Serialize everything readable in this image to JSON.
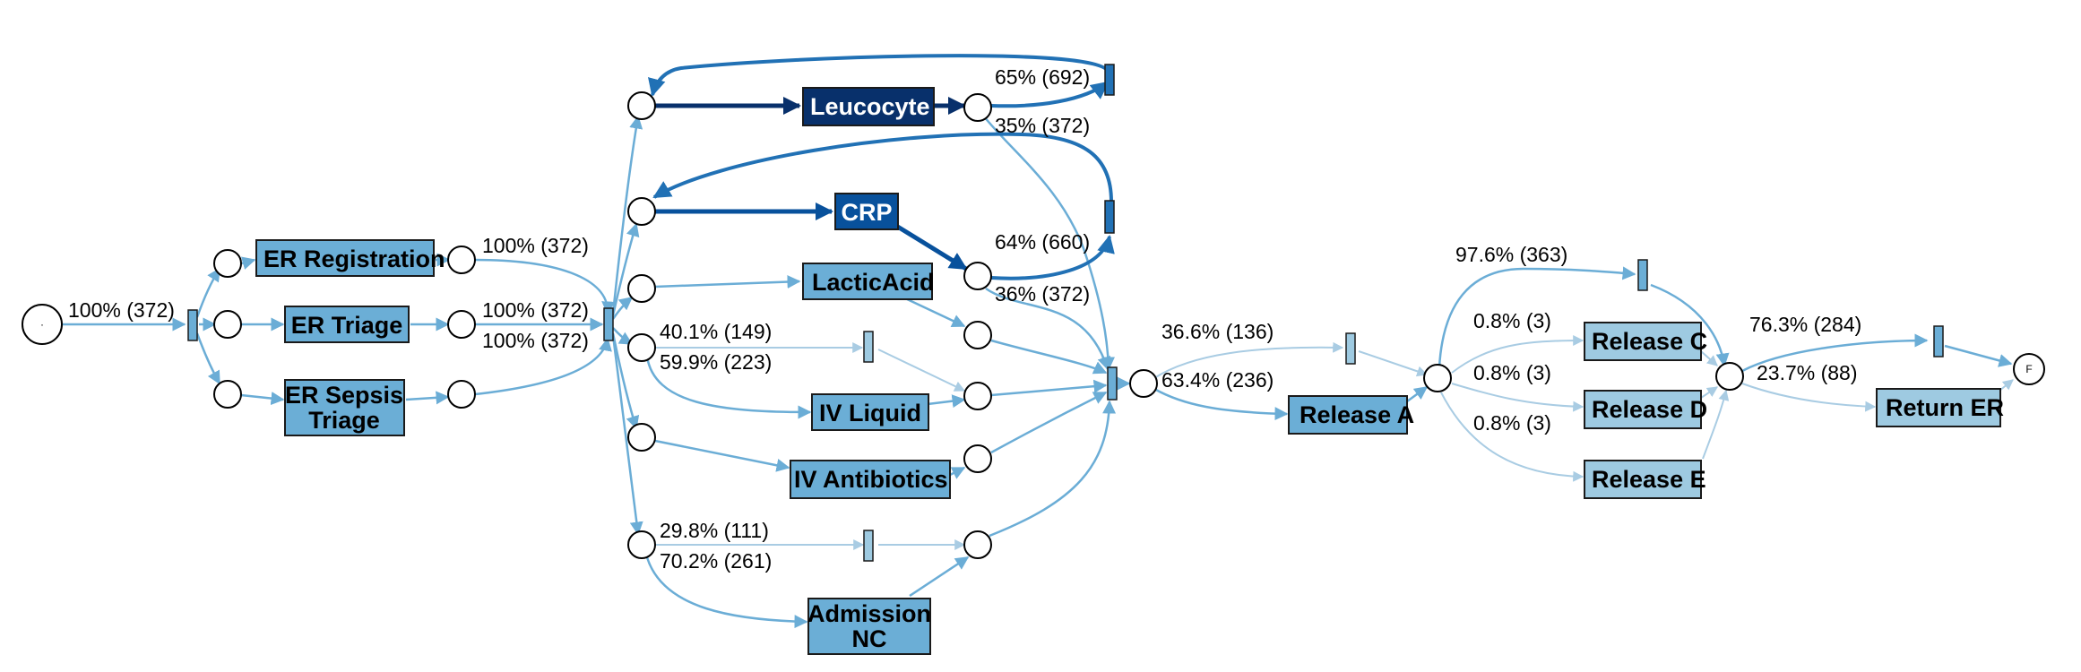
{
  "colors": {
    "light": "#a9cce3",
    "mid": "#6badd6",
    "strong": "#2171b5",
    "deep": "#08519c",
    "darkest": "#08306b",
    "node_light": "#9ecae1",
    "node_mid": "#6baed6",
    "node_dark": "#08519c",
    "node_darkest": "#08306b"
  },
  "start_place": {
    "label": "·"
  },
  "end_place": {
    "label": "F"
  },
  "activities": {
    "er_registration": "ER Registration",
    "er_triage": "ER Triage",
    "er_sepsis_triage_1": "ER Sepsis",
    "er_sepsis_triage_2": "Triage",
    "leucocytes": "Leucocyte",
    "crp": "CRP",
    "lacticacid": "LacticAcid",
    "iv_liquid": "IV Liquid",
    "iv_antibiotics": "IV Antibiotics",
    "admission_nc_1": "Admission",
    "admission_nc_2": "NC",
    "release_a": "Release A",
    "release_c": "Release C",
    "release_d": "Release D",
    "release_e": "Release E",
    "return_er": "Return ER"
  },
  "edge_labels": {
    "start_split": "100% (372)",
    "registration": "100% (372)",
    "triage": "100% (372)",
    "sepsis_triage": "100% (372)",
    "leuco_loop": "65% (692)",
    "leuco_exit": "35% (372)",
    "crp_loop": "64% (660)",
    "crp_exit": "36% (372)",
    "liquid_skip": "40.1% (149)",
    "liquid_do": "59.9% (223)",
    "admission_skip": "29.8% (111)",
    "admission_do": "70.2% (261)",
    "release_skip": "36.6% (136)",
    "release_a": "63.4% (236)",
    "release_b_path": "97.6% (363)",
    "release_c": "0.8% (3)",
    "release_d": "0.8% (3)",
    "release_e": "0.8% (3)",
    "end_skip": "76.3% (284)",
    "return_er": "23.7% (88)"
  }
}
